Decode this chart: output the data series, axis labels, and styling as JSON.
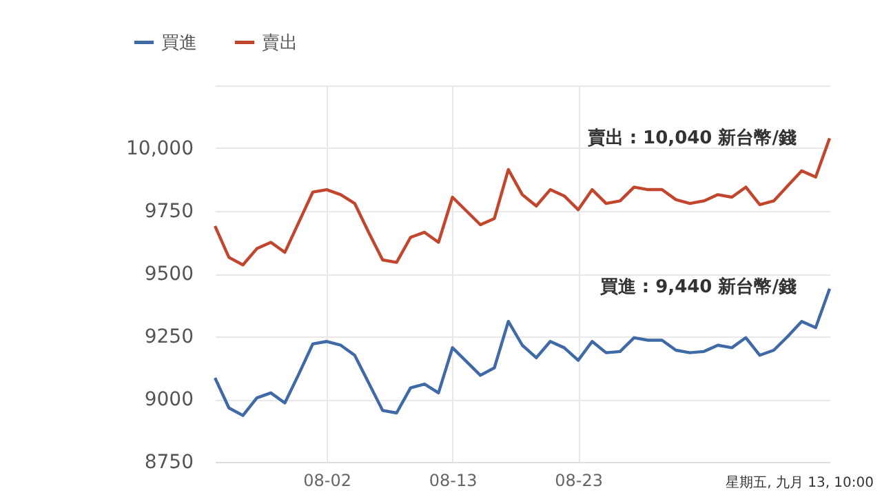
{
  "chart_data": {
    "type": "line",
    "categories": [
      null,
      null,
      null,
      null,
      null,
      null,
      null,
      null,
      "08-02",
      null,
      null,
      null,
      null,
      null,
      null,
      null,
      null,
      "08-13",
      null,
      null,
      null,
      null,
      null,
      null,
      null,
      null,
      "08-23",
      null,
      null,
      null,
      null,
      null,
      null,
      null,
      null,
      null,
      null,
      null,
      null,
      null,
      null,
      null,
      null,
      null,
      null
    ],
    "series": [
      {
        "name": "買進",
        "color": "#3f6aa6",
        "values": [
          9085,
          8965,
          8935,
          9005,
          9025,
          8985,
          9100,
          9220,
          9230,
          9215,
          9175,
          9065,
          8955,
          8945,
          9045,
          9060,
          9025,
          9205,
          9150,
          9095,
          9125,
          9310,
          9215,
          9165,
          9230,
          9205,
          9155,
          9230,
          9185,
          9190,
          9245,
          9235,
          9235,
          9195,
          9185,
          9190,
          9215,
          9205,
          9245,
          9175,
          9195,
          9250,
          9310,
          9285,
          9440
        ]
      },
      {
        "name": "賣出",
        "color": "#c2452d",
        "values": [
          9690,
          9565,
          9535,
          9600,
          9625,
          9585,
          9705,
          9825,
          9835,
          9815,
          9780,
          9665,
          9555,
          9545,
          9645,
          9665,
          9625,
          9805,
          9750,
          9695,
          9720,
          9915,
          9815,
          9770,
          9835,
          9810,
          9755,
          9835,
          9780,
          9790,
          9845,
          9835,
          9835,
          9795,
          9780,
          9790,
          9815,
          9805,
          9845,
          9775,
          9790,
          9850,
          9910,
          9885,
          10040
        ]
      }
    ],
    "ylim": [
      8750,
      10250
    ],
    "yticks": [
      8750,
      9000,
      9250,
      9500,
      9750,
      {
        "value": 10000,
        "label": "10,000"
      },
      {
        "value": 10250,
        "label": null
      }
    ],
    "grid": true,
    "legend": "top left",
    "annotations": [
      "賣出 : 10,040 新台幣/錢",
      "買進 : 9,440 新台幣/錢",
      "星期五, 九月 13, 10:00"
    ]
  }
}
